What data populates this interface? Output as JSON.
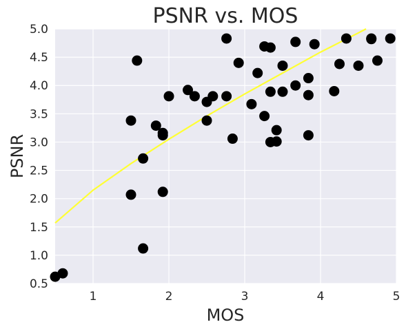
{
  "chart_data": {
    "type": "scatter",
    "title": "PSNR vs. MOS",
    "xlabel": "MOS",
    "ylabel": "PSNR",
    "xlim": [
      0.5,
      5.0
    ],
    "ylim": [
      0.5,
      5.0
    ],
    "xticks": [
      "1",
      "2",
      "3",
      "4",
      "5"
    ],
    "xtick_values": [
      1,
      2,
      3,
      4,
      5
    ],
    "yticks": [
      "0.5",
      "1.0",
      "1.5",
      "2.0",
      "2.5",
      "3.0",
      "3.5",
      "4.0",
      "4.5",
      "5.0"
    ],
    "ytick_values": [
      0.5,
      1.0,
      1.5,
      2.0,
      2.5,
      3.0,
      3.5,
      4.0,
      4.5,
      5.0
    ],
    "grid": true,
    "colors": {
      "background": "#eaeaf2",
      "grid": "#ffffff",
      "points": "#000000",
      "fit": "#ffff33"
    },
    "points": [
      {
        "x": 0.5,
        "y": 0.62
      },
      {
        "x": 0.6,
        "y": 0.68
      },
      {
        "x": 1.5,
        "y": 3.38
      },
      {
        "x": 1.5,
        "y": 2.07
      },
      {
        "x": 1.58,
        "y": 4.44
      },
      {
        "x": 1.66,
        "y": 2.71
      },
      {
        "x": 1.66,
        "y": 1.12
      },
      {
        "x": 1.83,
        "y": 3.29
      },
      {
        "x": 1.92,
        "y": 3.16
      },
      {
        "x": 1.92,
        "y": 3.12
      },
      {
        "x": 1.92,
        "y": 2.12
      },
      {
        "x": 2.0,
        "y": 3.81
      },
      {
        "x": 2.25,
        "y": 3.92
      },
      {
        "x": 2.34,
        "y": 3.81
      },
      {
        "x": 2.5,
        "y": 3.71
      },
      {
        "x": 2.5,
        "y": 3.38
      },
      {
        "x": 2.58,
        "y": 3.81
      },
      {
        "x": 2.76,
        "y": 4.83
      },
      {
        "x": 2.76,
        "y": 3.81
      },
      {
        "x": 2.84,
        "y": 3.06
      },
      {
        "x": 2.92,
        "y": 4.4
      },
      {
        "x": 3.09,
        "y": 3.67
      },
      {
        "x": 3.17,
        "y": 4.22
      },
      {
        "x": 3.26,
        "y": 4.69
      },
      {
        "x": 3.26,
        "y": 3.46
      },
      {
        "x": 3.34,
        "y": 4.67
      },
      {
        "x": 3.34,
        "y": 3.89
      },
      {
        "x": 3.34,
        "y": 3.0
      },
      {
        "x": 3.42,
        "y": 3.21
      },
      {
        "x": 3.42,
        "y": 3.01
      },
      {
        "x": 3.5,
        "y": 4.35
      },
      {
        "x": 3.5,
        "y": 3.89
      },
      {
        "x": 3.67,
        "y": 4.77
      },
      {
        "x": 3.67,
        "y": 4.0
      },
      {
        "x": 3.84,
        "y": 4.13
      },
      {
        "x": 3.84,
        "y": 3.83
      },
      {
        "x": 3.84,
        "y": 3.12
      },
      {
        "x": 3.92,
        "y": 4.73
      },
      {
        "x": 4.18,
        "y": 3.9
      },
      {
        "x": 4.25,
        "y": 4.38
      },
      {
        "x": 4.34,
        "y": 4.83
      },
      {
        "x": 4.5,
        "y": 4.35
      },
      {
        "x": 4.67,
        "y": 4.82
      },
      {
        "x": 4.67,
        "y": 4.83
      },
      {
        "x": 4.75,
        "y": 4.44
      },
      {
        "x": 4.92,
        "y": 4.83
      }
    ],
    "fit_line": {
      "type": "curve",
      "x": [
        0.5,
        1.0,
        1.5,
        2.0,
        2.5,
        3.0,
        3.5,
        4.0,
        4.5,
        4.6
      ],
      "y": [
        1.57,
        2.15,
        2.62,
        3.05,
        3.46,
        3.85,
        4.22,
        4.59,
        4.93,
        5.0
      ]
    }
  }
}
